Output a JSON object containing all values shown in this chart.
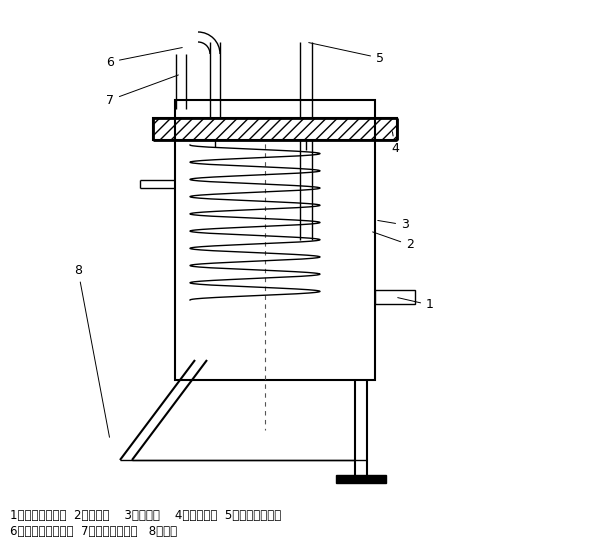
{
  "bg_color": "#ffffff",
  "line_color": "#000000",
  "fig_width": 6.03,
  "fig_height": 5.47,
  "dpi": 100,
  "caption_line1": "1、冷缺水进水口  2、冷却管    3、外壳体    4、本体法兰  5、冷却介质进口",
  "caption_line2": "6、冷却介质取样口  7、冷却水出水口   8、支架",
  "caption_fontsize": 8.5,
  "label_fontsize": 9
}
